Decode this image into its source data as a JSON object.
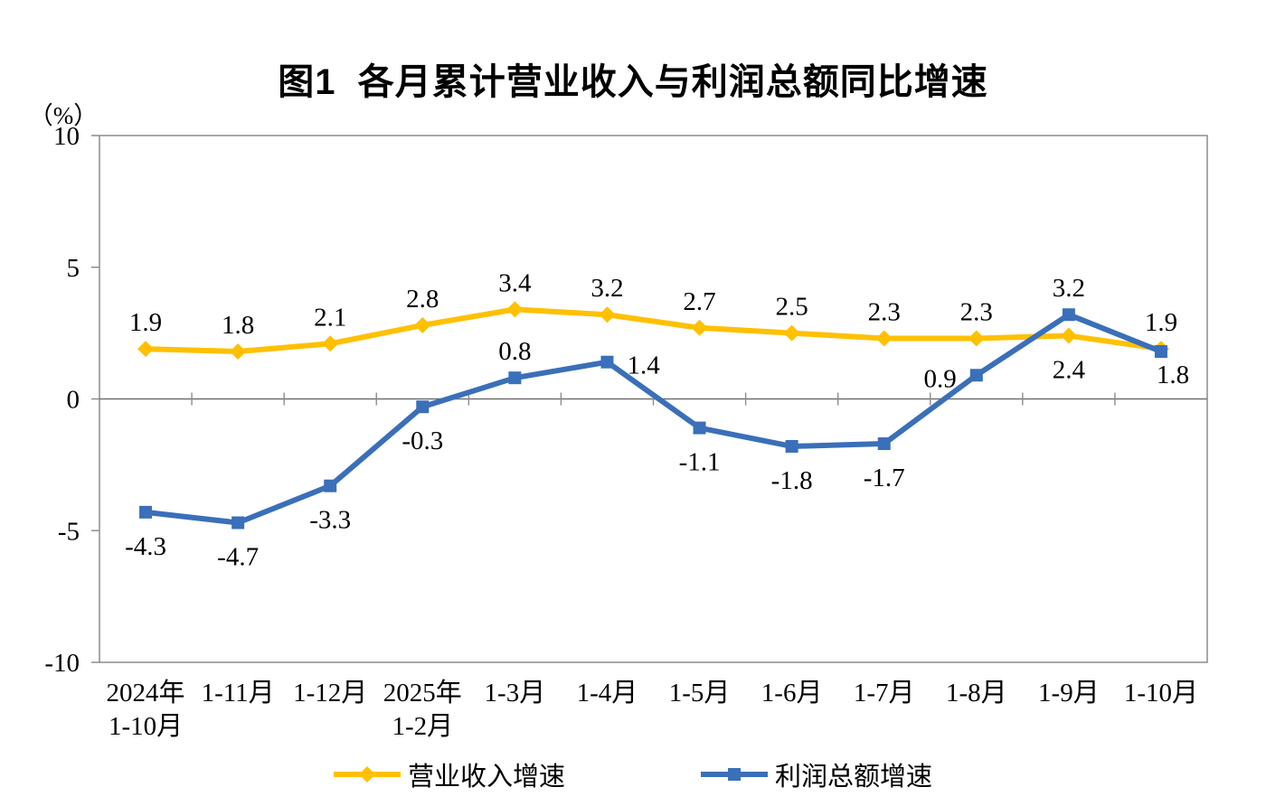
{
  "title": "图1  各月累计营业收入与利润总额同比增速",
  "y_axis_unit": "（%）",
  "chart_data": {
    "type": "line",
    "categories": [
      [
        "2024年",
        "1-10月"
      ],
      [
        "1-11月"
      ],
      [
        "1-12月"
      ],
      [
        "2025年",
        "1-2月"
      ],
      [
        "1-3月"
      ],
      [
        "1-4月"
      ],
      [
        "1-5月"
      ],
      [
        "1-6月"
      ],
      [
        "1-7月"
      ],
      [
        "1-8月"
      ],
      [
        "1-9月"
      ],
      [
        "1-10月"
      ]
    ],
    "series": [
      {
        "name": "营业收入增速",
        "color": "#FFC000",
        "marker": "diamond",
        "values": [
          1.9,
          1.8,
          2.1,
          2.8,
          3.4,
          3.2,
          2.7,
          2.5,
          2.3,
          2.3,
          2.4,
          1.9
        ],
        "label_positions": [
          "above",
          "above",
          "above",
          "above",
          "above",
          "above",
          "above",
          "above",
          "above",
          "above",
          "below",
          "above"
        ]
      },
      {
        "name": "利润总额增速",
        "color": "#3A6FB9",
        "marker": "square",
        "values": [
          -4.3,
          -4.7,
          -3.3,
          -0.3,
          0.8,
          1.4,
          -1.1,
          -1.8,
          -1.7,
          0.9,
          3.2,
          1.8
        ],
        "label_positions": [
          "below",
          "below",
          "below",
          "below",
          "above",
          "right",
          "below",
          "below",
          "below",
          "left",
          "above",
          "below-right"
        ]
      }
    ],
    "ylim": [
      -10,
      10
    ],
    "yticks": [
      10,
      5,
      0,
      -5,
      -10
    ],
    "grid": false,
    "legend_position": "bottom",
    "axis_color": "#8C8C8C",
    "zero_line_color": "#707070",
    "text_color": "#000000"
  }
}
